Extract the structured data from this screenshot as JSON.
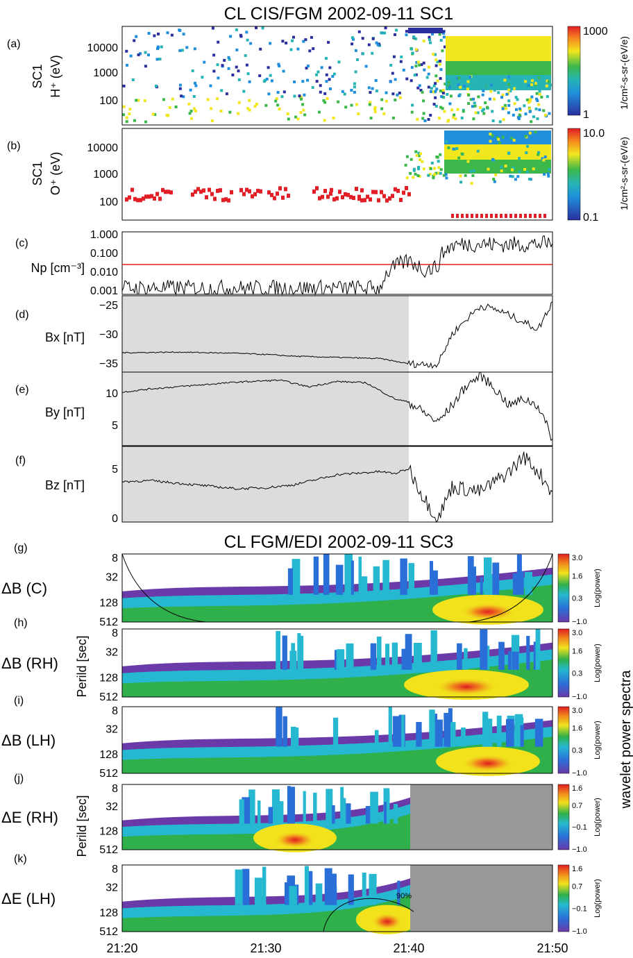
{
  "figure": {
    "title_top": "CL CIS/FGM 2002-09-11 SC1",
    "title_bottom": "CL FGM/EDI 2002-09-11 SC3",
    "side_label": "wavelet power spectra",
    "period_label_1": "Perild [sec]",
    "period_label_2": "Perild [sec]",
    "colors": {
      "spectrogram_scale": [
        "#2b2f9e",
        "#1f8fdc",
        "#26b4b4",
        "#3cb84a",
        "#f2e61e",
        "#f58a1e",
        "#e21e26"
      ],
      "wavelet_scale": [
        "#6a3aa8",
        "#2a6fd8",
        "#26b8d0",
        "#2fb04a",
        "#f1e21c",
        "#f08a1c",
        "#e01e22"
      ],
      "np_threshold_line": "#e0201c",
      "shade": "#dcdcdc",
      "no_data": "#999999"
    }
  },
  "chart_data": [
    {
      "id": "a",
      "type": "heatmap",
      "label": "(a)",
      "spacecraft": "SC1",
      "ylabel": "H⁺ (eV)",
      "yticks": [
        "10000",
        "1000",
        "100"
      ],
      "colorbar_ticks": [
        "1000",
        "1"
      ],
      "colorbar_label": "1/cm²-s-sr-(eV/e)",
      "x_range": [
        "21:20",
        "21:50"
      ]
    },
    {
      "id": "b",
      "type": "heatmap",
      "label": "(b)",
      "spacecraft": "SC1",
      "ylabel": "O⁺ (eV)",
      "yticks": [
        "10000",
        "1000",
        "100"
      ],
      "colorbar_ticks": [
        "10.0",
        "0.1"
      ],
      "colorbar_label": "1/cm²-s-sr-(eV/e)",
      "x_range": [
        "21:20",
        "21:50"
      ]
    },
    {
      "id": "c",
      "type": "line",
      "label": "(c)",
      "ylabel": "Np [cm⁻³]",
      "log_scale": true,
      "yticks": [
        "1.000",
        "0.100",
        "0.010",
        "0.001"
      ],
      "threshold": 0.03,
      "x": [
        "21:20",
        "21:25",
        "21:30",
        "21:35",
        "21:38",
        "21:39",
        "21:40",
        "21:41",
        "21:42",
        "21:43",
        "21:44",
        "21:46",
        "21:48",
        "21:50"
      ],
      "values": [
        0.002,
        0.002,
        0.002,
        0.002,
        0.002,
        0.02,
        0.04,
        0.015,
        0.02,
        0.22,
        0.27,
        0.25,
        0.25,
        0.28
      ]
    },
    {
      "id": "d",
      "type": "line",
      "label": "(d)",
      "ylabel": "Bx [nT]",
      "yticks": [
        "−25",
        "−30",
        "−35"
      ],
      "ylim": [
        -37.5,
        -24.5
      ],
      "x": [
        "21:20",
        "21:24",
        "21:28",
        "21:30",
        "21:32",
        "21:35",
        "21:38",
        "21:40",
        "21:42",
        "21:43",
        "21:44",
        "21:45",
        "21:46",
        "21:47",
        "21:48",
        "21:49",
        "21:50"
      ],
      "values": [
        -34.2,
        -34.1,
        -34.3,
        -34.5,
        -34.8,
        -35.0,
        -35.2,
        -36.1,
        -36.2,
        -31.0,
        -28.5,
        -26.2,
        -26.8,
        -27.8,
        -29.0,
        -30.2,
        -25.5
      ]
    },
    {
      "id": "e",
      "type": "line",
      "label": "(e)",
      "ylabel": "By [nT]",
      "yticks": [
        "10",
        "5"
      ],
      "ylim": [
        2,
        13
      ],
      "x": [
        "21:20",
        "21:22",
        "21:25",
        "21:28",
        "21:31",
        "21:33",
        "21:35",
        "21:37",
        "21:39",
        "21:40",
        "21:42",
        "21:43",
        "21:44",
        "21:45",
        "21:46",
        "21:47",
        "21:48",
        "21:49",
        "21:50"
      ],
      "values": [
        10.0,
        10.5,
        11.0,
        11.5,
        11.8,
        10.8,
        11.6,
        11.4,
        9.0,
        8.5,
        5.5,
        8.0,
        11.0,
        12.5,
        10.5,
        8.0,
        9.0,
        8.0,
        3.0
      ]
    },
    {
      "id": "f",
      "type": "line",
      "label": "(f)",
      "ylabel": "Bz [nT]",
      "yticks": [
        "5",
        "0"
      ],
      "ylim": [
        -0.5,
        7
      ],
      "x": [
        "21:20",
        "21:22",
        "21:25",
        "21:28",
        "21:30",
        "21:32",
        "21:35",
        "21:38",
        "21:39",
        "21:40",
        "21:41",
        "21:42",
        "21:43",
        "21:45",
        "21:47",
        "21:48",
        "21:49",
        "21:50"
      ],
      "values": [
        3.5,
        3.6,
        3.2,
        2.8,
        2.9,
        3.2,
        4.2,
        4.5,
        4.3,
        4.8,
        2.0,
        -0.2,
        3.0,
        2.5,
        4.5,
        6.0,
        4.5,
        2.5
      ]
    },
    {
      "id": "g",
      "type": "heatmap",
      "label": "(g)",
      "name": "ΔB (C)",
      "yticks": [
        "8",
        "32",
        "128",
        "512"
      ],
      "colorbar_ticks": [
        "3.0",
        "1.6",
        "0.3",
        "−1.0"
      ],
      "colorbar_label": "Log(power)"
    },
    {
      "id": "h",
      "type": "heatmap",
      "label": "(h)",
      "name": "ΔB (RH)",
      "yticks": [
        "8",
        "32",
        "128",
        "512"
      ],
      "colorbar_ticks": [
        "3.0",
        "1.6",
        "0.3",
        "−1.0"
      ],
      "colorbar_label": "Log(power)"
    },
    {
      "id": "i",
      "type": "heatmap",
      "label": "(i)",
      "name": "ΔB (LH)",
      "yticks": [
        "8",
        "32",
        "128",
        "512"
      ],
      "colorbar_ticks": [
        "3.0",
        "1.6",
        "0.3",
        "−1.0"
      ],
      "colorbar_label": "Log(power)"
    },
    {
      "id": "j",
      "type": "heatmap",
      "label": "(j)",
      "name": "ΔE (RH)",
      "yticks": [
        "8",
        "32",
        "128",
        "512"
      ],
      "colorbar_ticks": [
        "1.6",
        "0.7",
        "−0.1",
        "−1.0"
      ],
      "colorbar_label": "Log(power)"
    },
    {
      "id": "k",
      "type": "heatmap",
      "label": "(k)",
      "name": "ΔE (LH)",
      "yticks": [
        "8",
        "32",
        "128",
        "512"
      ],
      "colorbar_ticks": [
        "1.6",
        "0.7",
        "−0.1",
        "−1.0"
      ],
      "colorbar_label": "Log(power)",
      "contour_label": "90%"
    }
  ],
  "x_axis": {
    "ticks": [
      "21:20",
      "21:30",
      "21:40",
      "21:50"
    ]
  }
}
